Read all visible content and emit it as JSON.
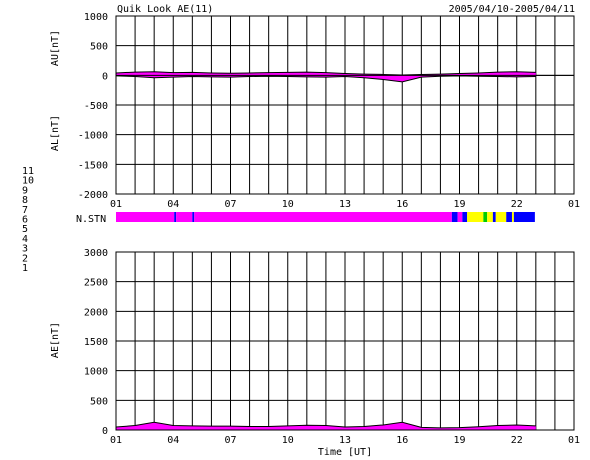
{
  "header": {
    "title": "Quik Look AE(11)",
    "date_range": "2005/04/10-2005/04/11"
  },
  "colors": {
    "stn_11": "#00e0e0",
    "stn_10": "#ff00ff",
    "stn_9": "#0000ff",
    "stn_8": "#ffff00",
    "stn_7": "#00cc00",
    "stn_6": "#ff0000",
    "stn_5": "#bbbbbb",
    "stn_4": "#999999",
    "stn_3": "#008888",
    "stn_2": "#aa00aa",
    "stn_1": "#0000cc",
    "axis": "#000000"
  },
  "station_legend": [
    "11",
    "10",
    "9",
    "8",
    "7",
    "6",
    "5",
    "4",
    "3",
    "2",
    "1"
  ],
  "station_bar_label": "N.STN",
  "chart_data": [
    {
      "type": "area",
      "panel": "AU/AL",
      "ylabel_upper": "AU[nT]",
      "ylabel_lower": "AL[nT]",
      "ylim": [
        -2000,
        1000
      ],
      "yticks": [
        "1000",
        "500",
        "0",
        "-500",
        "-1000",
        "-1500",
        "-2000"
      ],
      "xlim": [
        1,
        25
      ],
      "xticks": [
        "01",
        "04",
        "07",
        "10",
        "13",
        "16",
        "19",
        "22",
        "01"
      ],
      "grid": true,
      "series": [
        {
          "name": "AU",
          "x": [
            1,
            2,
            3,
            4,
            5,
            6,
            7,
            8,
            9,
            10,
            11,
            12,
            13,
            14,
            15,
            16,
            17,
            18,
            19,
            20,
            21,
            22,
            23
          ],
          "values": [
            40,
            55,
            60,
            45,
            50,
            40,
            35,
            40,
            45,
            50,
            55,
            45,
            30,
            20,
            15,
            5,
            15,
            20,
            30,
            40,
            55,
            60,
            50
          ]
        },
        {
          "name": "AL",
          "x": [
            1,
            2,
            3,
            4,
            5,
            6,
            7,
            8,
            9,
            10,
            11,
            12,
            13,
            14,
            15,
            16,
            17,
            18,
            19,
            20,
            21,
            22,
            23
          ],
          "values": [
            -10,
            -20,
            -40,
            -30,
            -20,
            -25,
            -30,
            -20,
            -15,
            -20,
            -25,
            -30,
            -20,
            -40,
            -70,
            -110,
            -30,
            -15,
            -10,
            -15,
            -20,
            -25,
            -20
          ]
        }
      ]
    },
    {
      "type": "area",
      "panel": "AE",
      "ylabel": "AE[nT]",
      "xlabel": "Time [UT]",
      "ylim": [
        0,
        3000
      ],
      "yticks": [
        "3000",
        "2500",
        "2000",
        "1500",
        "1000",
        "500",
        "0"
      ],
      "xlim": [
        1,
        25
      ],
      "xticks": [
        "01",
        "04",
        "07",
        "10",
        "13",
        "16",
        "19",
        "22",
        "01"
      ],
      "grid": true,
      "series": [
        {
          "name": "AE",
          "x": [
            1,
            2,
            3,
            4,
            5,
            6,
            7,
            8,
            9,
            10,
            11,
            12,
            13,
            14,
            15,
            16,
            17,
            18,
            19,
            20,
            21,
            22,
            23
          ],
          "values": [
            50,
            75,
            130,
            75,
            70,
            65,
            65,
            60,
            60,
            70,
            80,
            75,
            50,
            60,
            85,
            130,
            45,
            35,
            40,
            55,
            75,
            85,
            70
          ]
        }
      ]
    },
    {
      "type": "bar",
      "panel": "N.STN",
      "segments": [
        {
          "start": 1,
          "end": 4.05,
          "station": "10"
        },
        {
          "start": 4.05,
          "end": 4.15,
          "station": "9"
        },
        {
          "start": 4.15,
          "end": 5.0,
          "station": "10"
        },
        {
          "start": 5.0,
          "end": 5.1,
          "station": "9"
        },
        {
          "start": 5.1,
          "end": 18.6,
          "station": "10"
        },
        {
          "start": 18.6,
          "end": 18.9,
          "station": "9"
        },
        {
          "start": 18.9,
          "end": 19.15,
          "station": "10"
        },
        {
          "start": 19.15,
          "end": 19.4,
          "station": "9"
        },
        {
          "start": 19.4,
          "end": 20.25,
          "station": "8"
        },
        {
          "start": 20.25,
          "end": 20.45,
          "station": "7"
        },
        {
          "start": 20.45,
          "end": 20.75,
          "station": "8"
        },
        {
          "start": 20.75,
          "end": 20.9,
          "station": "9"
        },
        {
          "start": 20.9,
          "end": 21.45,
          "station": "8"
        },
        {
          "start": 21.45,
          "end": 21.75,
          "station": "9"
        },
        {
          "start": 21.75,
          "end": 21.85,
          "station": "8"
        },
        {
          "start": 21.85,
          "end": 22.95,
          "station": "9"
        }
      ]
    }
  ]
}
